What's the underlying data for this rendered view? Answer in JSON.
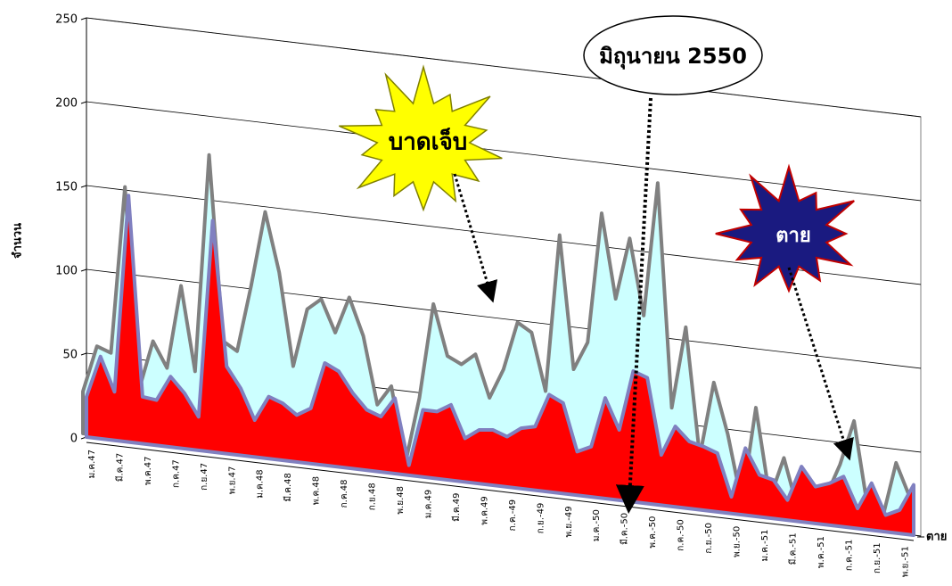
{
  "chart_data": {
    "type": "area3d",
    "y_label": "จำนวน",
    "categories": [
      "ม.ค.47",
      null,
      "มี.ค.47",
      null,
      "พ.ค.47",
      null,
      "ก.ค.47",
      null,
      "ก.ย.47",
      null,
      "พ.ย.47",
      null,
      "ม.ค.48",
      null,
      "มี.ค.48",
      null,
      "พ.ค.48",
      null,
      "ก.ค.48",
      null,
      "ก.ย.48",
      null,
      "พ.ย.48",
      null,
      "ม.ค.49",
      null,
      "มี.ค.49",
      null,
      "พ.ค.49",
      null,
      "ก.ค.-49",
      null,
      "ก.ย.-49",
      null,
      "พ.ย.-49",
      null,
      "ม.ค.-50",
      null,
      "มี.ค.-50",
      null,
      "พ.ค.-50",
      null,
      "ก.ค.-50",
      null,
      "ก.ย.-50",
      null,
      "พ.ย.-50",
      null,
      "ม.ค.-51",
      null,
      "มี.ค.-51",
      null,
      "พ.ค.-51",
      null,
      "ก.ค.-51",
      null,
      "ก.ย.-51",
      null,
      "พ.ย.-51",
      null
    ],
    "series": [
      {
        "name": "ตาย",
        "color": "#ff0000",
        "edge": "#8080c0",
        "values": [
          24,
          49,
          29,
          147,
          28,
          27,
          42,
          33,
          20,
          138,
          52,
          40,
          22,
          37,
          34,
          28,
          33,
          61,
          57,
          45,
          36,
          33,
          45,
          6,
          40,
          40,
          45,
          26,
          32,
          33,
          30,
          36,
          38,
          58,
          54,
          26,
          30,
          60,
          42,
          78,
          75,
          30,
          48,
          40,
          38,
          35,
          10,
          40,
          25,
          23,
          12,
          33,
          22,
          25,
          30,
          12,
          28,
          10,
          14,
          30
        ]
      },
      {
        "color": "#ccffff",
        "edge": "#808080",
        "values": [
          25,
          53,
          50,
          150,
          30,
          60,
          45,
          95,
          45,
          175,
          65,
          60,
          100,
          145,
          110,
          55,
          90,
          97,
          78,
          100,
          78,
          38,
          50,
          5,
          45,
          102,
          72,
          68,
          75,
          50,
          68,
          97,
          92,
          58,
          152,
          73,
          90,
          168,
          118,
          155,
          110,
          190,
          57,
          106,
          30,
          75,
          45,
          5,
          63,
          10,
          35,
          5,
          10,
          15,
          35,
          62,
          10,
          5,
          40,
          20
        ]
      }
    ],
    "ylim": [
      0,
      250
    ],
    "yticks": [
      0,
      50,
      100,
      150,
      200,
      250
    ],
    "grid": true,
    "annotations": [
      "มิถุนายน 2550",
      "บาดเจ็บ",
      "ตาย"
    ]
  }
}
